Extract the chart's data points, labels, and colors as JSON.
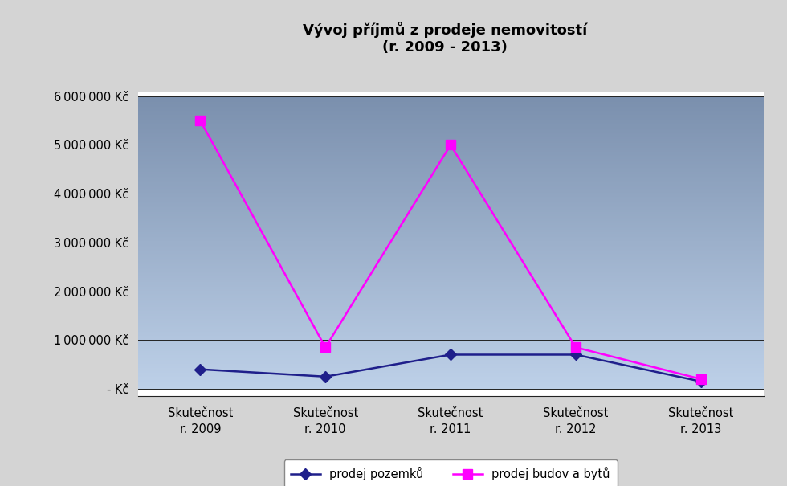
{
  "title_line1": "Vývoj příjmů z prodeje nemovitostí",
  "title_line2": "(r. 2009 - 2013)",
  "categories": [
    "Skutečnost\nr. 2009",
    "Skutečnost\nr. 2010",
    "Skutečnost\nr. 2011",
    "Skutečnost\nr. 2012",
    "Skutečnost\nr. 2013"
  ],
  "series1_name": "prodej pozemků",
  "series1_color": "#1F1F8B",
  "series1_values": [
    400000,
    250000,
    700000,
    700000,
    150000
  ],
  "series2_name": "prodej budov a bytů",
  "series2_color": "#FF00FF",
  "series2_values": [
    5500000,
    850000,
    5000000,
    850000,
    200000
  ],
  "ylim_min": 0,
  "ylim_max": 6000000,
  "ytick_step": 1000000,
  "bg_color_top": "#7A8FAD",
  "bg_color_bottom": "#BDD0E8",
  "outer_bg": "#D4D4D4",
  "title_fontsize": 13,
  "axis_fontsize": 10.5,
  "legend_fontsize": 10.5
}
